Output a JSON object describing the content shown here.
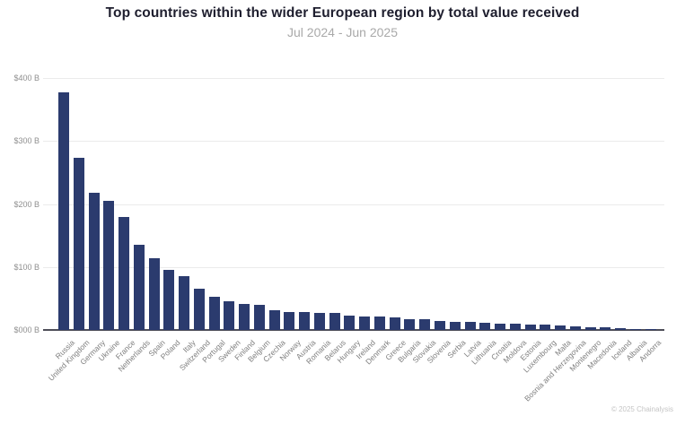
{
  "header": {
    "title": "Top countries within the wider European region by total value received",
    "subtitle": "Jul 2024 - Jun 2025"
  },
  "footer": {
    "copyright": "© 2025 Chainalysis"
  },
  "colors": {
    "bar": "#2b3b6e",
    "grid": "#ebebeb",
    "axis_line": "#4e4e58",
    "ytick_text": "#8f8f8f",
    "xtick_text": "#7f7f7f",
    "title_text": "#1e1e2e",
    "subtitle_text": "#a9a9a9",
    "footer_text": "#c5c5c5",
    "background": "#ffffff"
  },
  "chart_data": {
    "type": "bar",
    "title": "Top countries within the wider European region by total value received",
    "subtitle": "Jul 2024 - Jun 2025",
    "unit": "USD billions",
    "xlabel": "",
    "ylabel": "",
    "ylim": [
      0,
      400
    ],
    "grid": true,
    "legend": false,
    "yticks": [
      {
        "value": 0,
        "label": "$000 B"
      },
      {
        "value": 100,
        "label": "$100 B"
      },
      {
        "value": 200,
        "label": "$200 B"
      },
      {
        "value": 300,
        "label": "$300 B"
      },
      {
        "value": 400,
        "label": "$400 B"
      }
    ],
    "categories": [
      "Russia",
      "United Kingdom",
      "Germany",
      "Ukraine",
      "France",
      "Netherlands",
      "Spain",
      "Poland",
      "Italy",
      "Switzerland",
      "Portugal",
      "Sweden",
      "Finland",
      "Belgium",
      "Czechia",
      "Norway",
      "Austria",
      "Romania",
      "Belarus",
      "Hungary",
      "Ireland",
      "Denmark",
      "Greece",
      "Bulgaria",
      "Slovakia",
      "Slovenia",
      "Serbia",
      "Latvia",
      "Lithuania",
      "Croatia",
      "Moldova",
      "Estonia",
      "Luxembourg",
      "Malta",
      "Bosnia and Herzegovina",
      "Montenegro",
      "Macedonia",
      "Iceland",
      "Albania",
      "Andorra"
    ],
    "values": [
      377,
      274,
      218,
      205,
      179,
      136,
      114,
      96,
      86,
      66,
      52,
      46,
      42,
      40,
      32,
      29,
      28,
      27.5,
      26.5,
      22.5,
      22,
      21.5,
      20.5,
      17.5,
      17,
      14.5,
      13.5,
      13,
      11,
      10,
      9.5,
      9,
      8.5,
      7,
      6,
      4.5,
      4,
      2.5,
      1.8,
      1.2
    ]
  },
  "layout_note": "single bar chart, no legend, gridlines on, y-axis left, rotated x labels"
}
